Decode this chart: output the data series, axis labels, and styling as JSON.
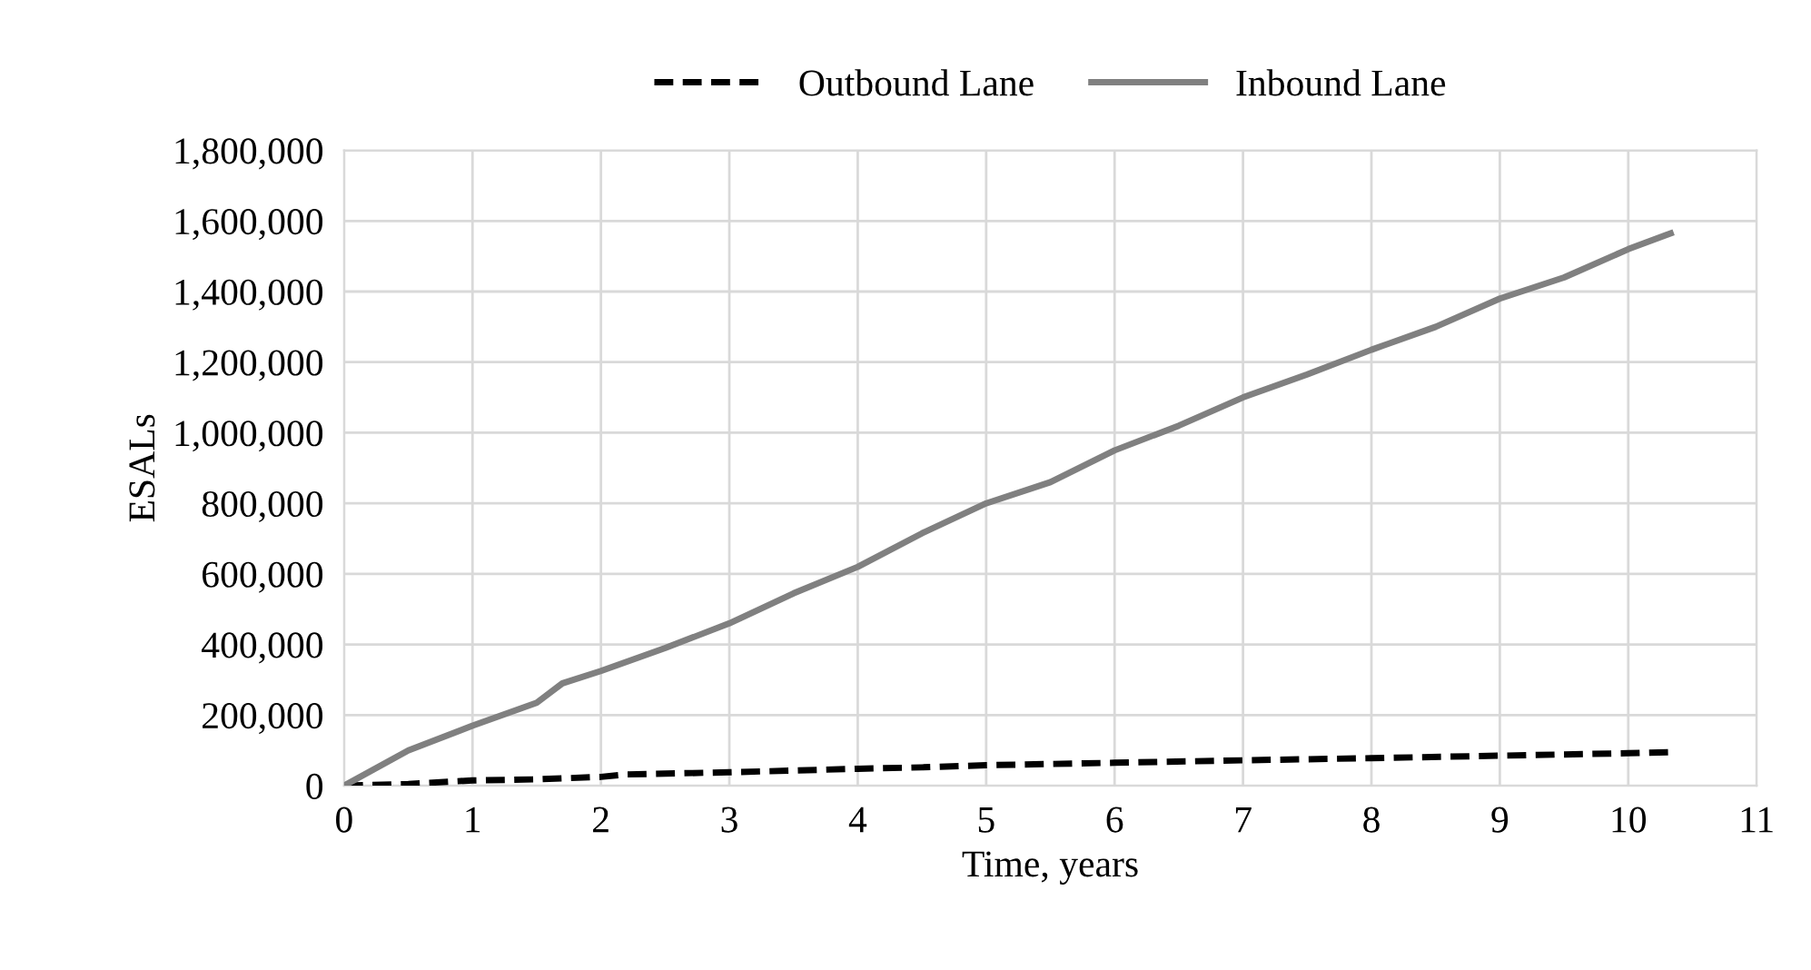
{
  "chart_data": {
    "type": "line",
    "xlabel": "Time, years",
    "ylabel": "ESALs",
    "grid": true,
    "legend": "top",
    "marker": "none",
    "xlim": [
      0,
      11
    ],
    "xticks": [
      0,
      1,
      2,
      3,
      4,
      5,
      6,
      7,
      8,
      9,
      10,
      11
    ],
    "ylim": [
      0,
      1800000
    ],
    "yticks": [
      {
        "value": 0,
        "label": "0"
      },
      {
        "value": 200000,
        "label": "200,000"
      },
      {
        "value": 400000,
        "label": "400,000"
      },
      {
        "value": 600000,
        "label": "600,000"
      },
      {
        "value": 800000,
        "label": "800,000"
      },
      {
        "value": 1000000,
        "label": "1,000,000"
      },
      {
        "value": 1200000,
        "label": "1,200,000"
      },
      {
        "value": 1400000,
        "label": "1,400,000"
      },
      {
        "value": 1600000,
        "label": "1,600,000"
      },
      {
        "value": 1800000,
        "label": "1,800,000"
      }
    ],
    "series": [
      {
        "name": "Outbound Lane",
        "color": "#000000",
        "line_style": "dashed",
        "x": [
          0,
          0.5,
          1,
          1.5,
          2,
          2.2,
          3,
          4,
          4.5,
          5,
          6,
          7,
          8,
          9,
          10,
          10.33
        ],
        "values": [
          0,
          5000,
          15000,
          18000,
          25000,
          32000,
          38000,
          48000,
          52000,
          58000,
          65000,
          72000,
          78000,
          85000,
          92000,
          95000
        ]
      },
      {
        "name": "Inbound Lane",
        "color": "#808080",
        "line_style": "solid",
        "x": [
          0,
          0.5,
          1,
          1.5,
          1.7,
          2,
          2.5,
          3,
          3.5,
          4,
          4.5,
          5,
          5.5,
          6,
          6.5,
          7,
          7.5,
          8,
          8.5,
          9,
          9.5,
          10,
          10.33
        ],
        "values": [
          0,
          100000,
          170000,
          235000,
          290000,
          325000,
          390000,
          460000,
          545000,
          620000,
          715000,
          800000,
          860000,
          950000,
          1020000,
          1100000,
          1165000,
          1235000,
          1300000,
          1380000,
          1440000,
          1520000,
          1565000
        ]
      }
    ]
  }
}
